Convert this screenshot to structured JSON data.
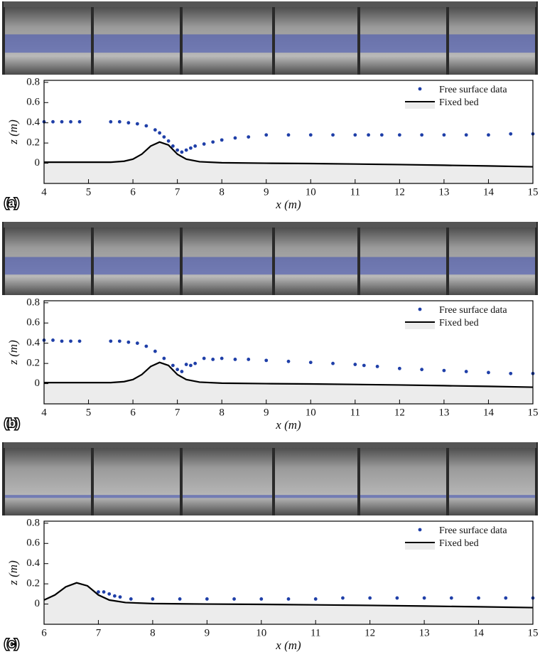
{
  "chart_data": [
    {
      "type": "scatter",
      "panel_label": "(a)",
      "xlabel": "x (m)",
      "ylabel": "z (m)",
      "xlim": [
        4,
        15
      ],
      "ylim": [
        -0.2,
        0.82
      ],
      "xticks": [
        4,
        5,
        6,
        7,
        8,
        9,
        10,
        11,
        12,
        13,
        14,
        15
      ],
      "yticks": [
        0,
        0.2,
        0.4,
        0.6,
        0.8
      ],
      "legend": "upper right",
      "series": [
        {
          "name": "Free surface data",
          "style": "points",
          "color": "#1f3fa8",
          "x": [
            4,
            4.2,
            4.4,
            4.6,
            4.8,
            5.5,
            5.7,
            5.9,
            6.1,
            6.3,
            6.5,
            6.6,
            6.7,
            6.8,
            6.9,
            7.0,
            7.1,
            7.2,
            7.3,
            7.4,
            7.6,
            7.8,
            8.0,
            8.3,
            8.6,
            9.0,
            9.5,
            10,
            10.5,
            11,
            11.3,
            11.6,
            12,
            12.5,
            13,
            13.5,
            14,
            14.5,
            15
          ],
          "values": [
            0.41,
            0.41,
            0.41,
            0.41,
            0.41,
            0.41,
            0.41,
            0.4,
            0.39,
            0.37,
            0.33,
            0.3,
            0.26,
            0.22,
            0.17,
            0.13,
            0.11,
            0.13,
            0.15,
            0.17,
            0.19,
            0.21,
            0.23,
            0.25,
            0.26,
            0.28,
            0.28,
            0.28,
            0.28,
            0.28,
            0.28,
            0.28,
            0.28,
            0.28,
            0.28,
            0.28,
            0.28,
            0.29,
            0.29
          ]
        },
        {
          "name": "Fixed bed",
          "style": "area",
          "color": "#000000",
          "fill": "#ececec",
          "x": [
            4,
            5,
            5.5,
            5.8,
            6,
            6.2,
            6.4,
            6.6,
            6.8,
            7,
            7.2,
            7.5,
            8,
            9,
            10,
            11,
            12,
            13,
            14,
            15
          ],
          "values": [
            0.01,
            0.01,
            0.01,
            0.02,
            0.04,
            0.09,
            0.17,
            0.21,
            0.18,
            0.09,
            0.04,
            0.015,
            0.005,
            0,
            -0.003,
            -0.008,
            -0.013,
            -0.02,
            -0.027,
            -0.035
          ]
        }
      ]
    },
    {
      "type": "scatter",
      "panel_label": "(b)",
      "xlabel": "x (m)",
      "ylabel": "z (m)",
      "xlim": [
        4,
        15
      ],
      "ylim": [
        -0.2,
        0.82
      ],
      "xticks": [
        4,
        5,
        6,
        7,
        8,
        9,
        10,
        11,
        12,
        13,
        14,
        15
      ],
      "yticks": [
        0,
        0.2,
        0.4,
        0.6,
        0.8
      ],
      "legend": "upper right",
      "series": [
        {
          "name": "Free surface data",
          "style": "points",
          "color": "#1f3fa8",
          "x": [
            4,
            4.2,
            4.4,
            4.6,
            4.8,
            5.5,
            5.7,
            5.9,
            6.1,
            6.3,
            6.5,
            6.7,
            6.9,
            7.0,
            7.1,
            7.2,
            7.3,
            7.4,
            7.6,
            7.8,
            8.0,
            8.3,
            8.6,
            9.0,
            9.5,
            10,
            10.5,
            11,
            11.2,
            11.5,
            12,
            12.5,
            13,
            13.5,
            14,
            14.5,
            15
          ],
          "values": [
            0.43,
            0.43,
            0.42,
            0.42,
            0.42,
            0.42,
            0.42,
            0.41,
            0.4,
            0.37,
            0.32,
            0.25,
            0.18,
            0.14,
            0.12,
            0.19,
            0.18,
            0.2,
            0.25,
            0.24,
            0.25,
            0.24,
            0.24,
            0.23,
            0.22,
            0.21,
            0.2,
            0.19,
            0.18,
            0.17,
            0.15,
            0.14,
            0.13,
            0.12,
            0.11,
            0.1,
            0.1
          ]
        },
        {
          "name": "Fixed bed",
          "style": "area",
          "color": "#000000",
          "fill": "#ececec",
          "x": [
            4,
            5,
            5.5,
            5.8,
            6,
            6.2,
            6.4,
            6.6,
            6.8,
            7,
            7.2,
            7.5,
            8,
            9,
            10,
            11,
            12,
            13,
            14,
            15
          ],
          "values": [
            0.01,
            0.01,
            0.01,
            0.02,
            0.04,
            0.09,
            0.17,
            0.21,
            0.18,
            0.09,
            0.04,
            0.015,
            0.005,
            0,
            -0.003,
            -0.008,
            -0.013,
            -0.02,
            -0.027,
            -0.035
          ]
        }
      ]
    },
    {
      "type": "scatter",
      "panel_label": "(c)",
      "xlabel": "x (m)",
      "ylabel": "z (m)",
      "xlim": [
        6,
        15
      ],
      "ylim": [
        -0.2,
        0.82
      ],
      "xticks": [
        6,
        7,
        8,
        9,
        10,
        11,
        12,
        13,
        14,
        15
      ],
      "yticks": [
        0,
        0.2,
        0.4,
        0.6,
        0.8
      ],
      "legend": "upper right",
      "series": [
        {
          "name": "Free surface data",
          "style": "points",
          "color": "#1f3fa8",
          "x": [
            6.9,
            7.0,
            7.1,
            7.2,
            7.3,
            7.4,
            7.6,
            8,
            8.5,
            9,
            9.5,
            10,
            10.5,
            11,
            11.5,
            12,
            12.5,
            13,
            13.5,
            14,
            14.5,
            15
          ],
          "values": [
            0.12,
            0.12,
            0.12,
            0.1,
            0.08,
            0.07,
            0.05,
            0.05,
            0.05,
            0.05,
            0.05,
            0.05,
            0.05,
            0.05,
            0.06,
            0.06,
            0.06,
            0.06,
            0.06,
            0.06,
            0.06,
            0.06
          ]
        },
        {
          "name": "Fixed bed",
          "style": "area",
          "color": "#000000",
          "fill": "#ececec",
          "x": [
            6,
            6.2,
            6.4,
            6.6,
            6.8,
            7,
            7.2,
            7.5,
            8,
            9,
            10,
            11,
            12,
            13,
            14,
            15
          ],
          "values": [
            0.04,
            0.09,
            0.17,
            0.21,
            0.18,
            0.09,
            0.04,
            0.015,
            0.005,
            0,
            -0.003,
            -0.008,
            -0.013,
            -0.02,
            -0.027,
            -0.035
          ]
        }
      ]
    }
  ]
}
